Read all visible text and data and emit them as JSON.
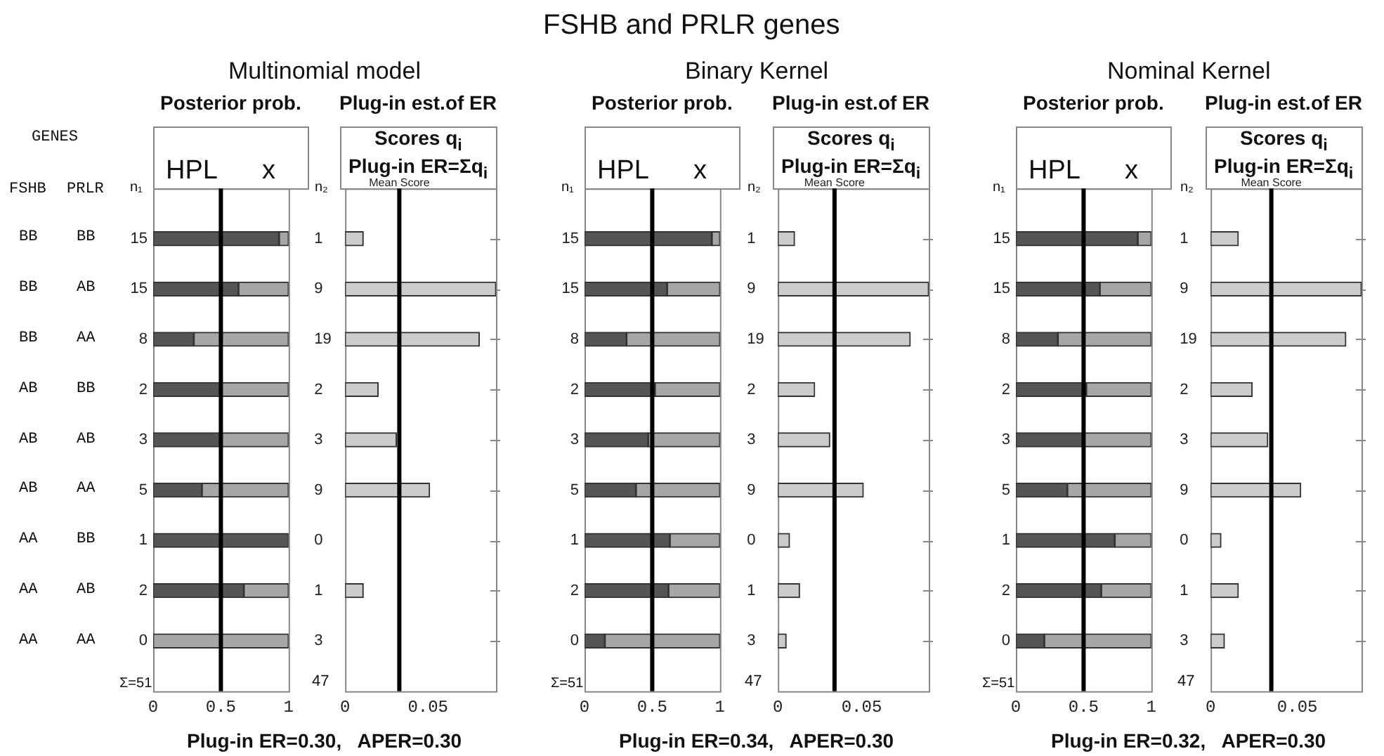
{
  "chart_data": [
    {
      "type": "other",
      "title": "FSHB and PRLR genes",
      "annotations": [
        "GENES",
        "FSHB",
        "PRLR",
        "BB",
        "BB",
        "BB",
        "AB",
        "BB",
        "AA",
        "AB",
        "BB",
        "AB",
        "AB",
        "AB",
        "AA",
        "AA",
        "BB",
        "AA",
        "AB",
        "AA",
        "AA"
      ]
    },
    {
      "type": "bar",
      "orientation": "horizontal",
      "stacked": true,
      "title": "Multinomial model",
      "subtitle": "Posterior prob.",
      "ylabel": "n₁",
      "categories": [
        "15",
        "15",
        "8",
        "2",
        "3",
        "5",
        "1",
        "2",
        "0"
      ],
      "series": [
        {
          "name": "HPL",
          "color": "#555555",
          "values": [
            0.93,
            0.63,
            0.3,
            0.5,
            0.5,
            0.36,
            1,
            0.67,
            0
          ]
        },
        {
          "name": "x",
          "color": "#a6a6a6",
          "values": [
            0.07,
            0.37,
            0.7,
            0.5,
            0.5,
            0.64,
            0,
            0.33,
            1
          ]
        }
      ],
      "xlim": [
        0,
        1
      ],
      "xticks": [
        0,
        0.5,
        1
      ],
      "legend": "top",
      "ref_lines": [
        {
          "axis": "x",
          "value": 0.5,
          "color": "#000000"
        }
      ],
      "annotations": [
        "Σ=51",
        "Plug-in ER=0.30,   APER=0.30"
      ]
    },
    {
      "type": "bar",
      "orientation": "horizontal",
      "title": "Plug-in est.of ER",
      "subtitle": "Scores q$_{i}$",
      "ylabel": "n₂",
      "categories": [
        "1",
        "9",
        "19",
        "2",
        "3",
        "9",
        "0",
        "1",
        "3"
      ],
      "series": [
        {
          "color": "#cccccc",
          "values": [
            0.011,
            0.091,
            0.081,
            0.02,
            0.031,
            0.051,
            0,
            0.011,
            0
          ]
        }
      ],
      "xlim": [
        0,
        0.091
      ],
      "xticks": [
        0,
        0.05
      ],
      "ref_lines": [
        {
          "axis": "x",
          "value": 0.0327,
          "label": "Mean Score",
          "color": "#000000"
        }
      ],
      "annotations": [
        "47",
        "Plug-in ER=Σq$_{i}$"
      ]
    },
    {
      "type": "bar",
      "orientation": "horizontal",
      "stacked": true,
      "title": "Binary Kernel",
      "subtitle": "Posterior prob.",
      "ylabel": "n₁",
      "categories": [
        "15",
        "15",
        "8",
        "2",
        "3",
        "5",
        "1",
        "2",
        "0"
      ],
      "series": [
        {
          "name": "HPL",
          "color": "#555555",
          "values": [
            0.94,
            0.61,
            0.31,
            0.52,
            0.47,
            0.38,
            0.63,
            0.62,
            0.15
          ]
        },
        {
          "name": "x",
          "color": "#a6a6a6",
          "values": [
            0.06,
            0.39,
            0.69,
            0.48,
            0.53,
            0.62,
            0.37,
            0.38,
            0.85
          ]
        }
      ],
      "xlim": [
        0,
        1
      ],
      "xticks": [
        0,
        0.5,
        1
      ],
      "legend": "top",
      "ref_lines": [
        {
          "axis": "x",
          "value": 0.5,
          "color": "#000000"
        }
      ],
      "annotations": [
        "Σ=51",
        "Plug-in ER=0.34,   APER=0.30"
      ]
    },
    {
      "type": "bar",
      "orientation": "horizontal",
      "title": "Plug-in est.of ER",
      "subtitle": "Scores q$_{i}$",
      "ylabel": "n₂",
      "categories": [
        "1",
        "9",
        "19",
        "2",
        "3",
        "9",
        "0",
        "1",
        "3"
      ],
      "series": [
        {
          "color": "#cccccc",
          "values": [
            0.01,
            0.09,
            0.079,
            0.022,
            0.031,
            0.051,
            0.007,
            0.013,
            0.005
          ]
        }
      ],
      "xlim": [
        0,
        0.09
      ],
      "xticks": [
        0,
        0.05
      ],
      "ref_lines": [
        {
          "axis": "x",
          "value": 0.0338,
          "label": "Mean Score",
          "color": "#000000"
        }
      ],
      "annotations": [
        "47",
        "Plug-in ER=Σq$_{i}$"
      ]
    },
    {
      "type": "bar",
      "orientation": "horizontal",
      "stacked": true,
      "title": "Nominal Kernel",
      "subtitle": "Posterior prob.",
      "ylabel": "n₁",
      "categories": [
        "15",
        "15",
        "8",
        "2",
        "3",
        "5",
        "1",
        "2",
        "0"
      ],
      "series": [
        {
          "name": "HPL",
          "color": "#555555",
          "values": [
            0.9,
            0.62,
            0.31,
            0.52,
            0.5,
            0.38,
            0.73,
            0.63,
            0.21
          ]
        },
        {
          "name": "x",
          "color": "#a6a6a6",
          "values": [
            0.1,
            0.38,
            0.69,
            0.48,
            0.5,
            0.62,
            0.27,
            0.37,
            0.79
          ]
        }
      ],
      "xlim": [
        0,
        1
      ],
      "xticks": [
        0,
        0.5,
        1
      ],
      "legend": "top",
      "ref_lines": [
        {
          "axis": "x",
          "value": 0.5,
          "color": "#000000"
        }
      ],
      "annotations": [
        "Σ=51",
        "Plug-in ER=0.32,   APER=0.30"
      ]
    },
    {
      "type": "bar",
      "orientation": "horizontal",
      "title": "Plug-in est.of ER",
      "subtitle": "Scores q$_{i}$",
      "ylabel": "n₂",
      "categories": [
        "1",
        "9",
        "19",
        "2",
        "3",
        "9",
        "0",
        "1",
        "3"
      ],
      "series": [
        {
          "color": "#cccccc",
          "values": [
            0.016,
            0.087,
            0.078,
            0.024,
            0.033,
            0.052,
            0.006,
            0.016,
            0.008
          ]
        }
      ],
      "xlim": [
        0,
        0.087
      ],
      "xticks": [
        0,
        0.05
      ],
      "ref_lines": [
        {
          "axis": "x",
          "value": 0.035,
          "label": "Mean Score",
          "color": "#000000"
        }
      ],
      "annotations": [
        "47",
        "Plug-in ER=Σq$_{i}$"
      ]
    }
  ]
}
